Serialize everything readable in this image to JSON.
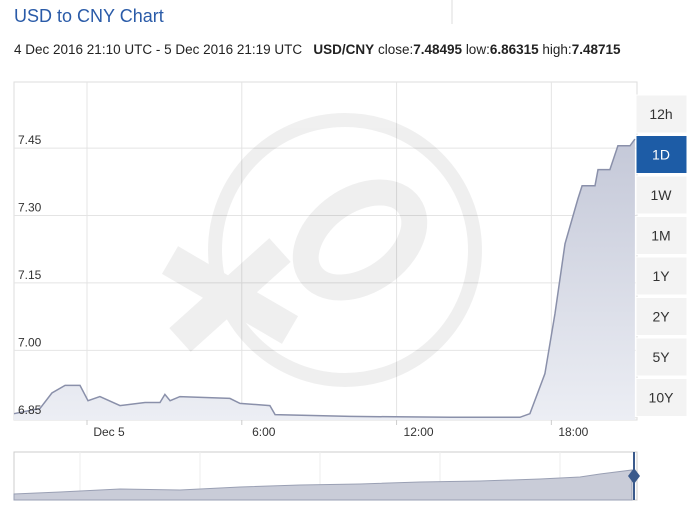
{
  "title": "USD to CNY Chart",
  "range_text": "4 Dec 2016 21:10 UTC - 5 Dec 2016 21:19 UTC",
  "pair": "USD/CNY",
  "stats": [
    {
      "label": "close:",
      "value": "7.48495"
    },
    {
      "label": "low:",
      "value": "6.86315"
    },
    {
      "label": "high:",
      "value": "7.48715"
    }
  ],
  "buttons": [
    "12h",
    "1D",
    "1W",
    "1M",
    "1Y",
    "2Y",
    "5Y",
    "10Y"
  ],
  "selected_button": "1D",
  "chart_data": {
    "type": "area",
    "color": "#8a90aa",
    "grid": true,
    "xlim": [
      -2.83,
      21.32
    ],
    "ylim": [
      6.845,
      7.597
    ],
    "xticks": [
      {
        "value": 0,
        "label": "Dec 5"
      },
      {
        "value": 6,
        "label": "6:00"
      },
      {
        "value": 12,
        "label": "12:00"
      },
      {
        "value": 18,
        "label": "18:00"
      }
    ],
    "yticks": [
      {
        "value": 6.85,
        "label": "6.85"
      },
      {
        "value": 7.0,
        "label": "7.00"
      },
      {
        "value": 7.15,
        "label": "7.15"
      },
      {
        "value": 7.3,
        "label": "7.30"
      },
      {
        "value": 7.45,
        "label": "7.45"
      }
    ],
    "x": [
      -2.83,
      -1.82,
      -1.36,
      -0.85,
      -0.27,
      0.04,
      0.5,
      1.28,
      2.25,
      2.83,
      3.02,
      3.22,
      3.6,
      5.54,
      5.93,
      7.09,
      7.29,
      10.19,
      14.07,
      16.78,
      17.17,
      17.75,
      18.14,
      18.53,
      19.03,
      19.19,
      19.69,
      19.81,
      20.27,
      20.58,
      21.05,
      21.24
    ],
    "values": [
      6.859,
      6.871,
      6.905,
      6.922,
      6.922,
      6.888,
      6.897,
      6.877,
      6.884,
      6.884,
      6.902,
      6.888,
      6.897,
      6.893,
      6.882,
      6.877,
      6.857,
      6.853,
      6.851,
      6.851,
      6.859,
      6.948,
      7.082,
      7.237,
      7.337,
      7.366,
      7.366,
      7.402,
      7.402,
      7.455,
      7.455,
      7.47
    ]
  }
}
